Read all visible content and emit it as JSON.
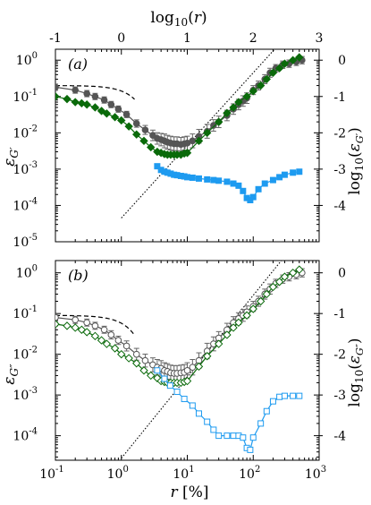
{
  "chart_data": [
    {
      "panel": "(a)",
      "type": "line",
      "x_scale": "log",
      "y_scale": "log",
      "xlim": [
        0.1,
        1000
      ],
      "ylim": [
        1e-05,
        2
      ],
      "x_ticks": [
        "10^{-1}",
        "10^{0}",
        "10^{1}",
        "10^{2}",
        "10^{3}"
      ],
      "y_ticks": [
        "10^{-5}",
        "10^{-4}",
        "10^{-3}",
        "10^{-2}",
        "10^{-1}",
        "10^{0}"
      ],
      "top_axis": {
        "label": "log10(r)",
        "ticks": [
          "-1",
          "0",
          "1",
          "2",
          "3"
        ]
      },
      "right_axis": {
        "label": "log10(ε_G')",
        "ticks": [
          "0",
          "-1",
          "-2",
          "-3",
          "-4"
        ]
      },
      "ylabel": "ε_G'",
      "series": [
        {
          "color": "#555555",
          "marker": "circle-filled",
          "x": [
            0.1,
            0.2,
            0.3,
            0.4,
            0.55,
            0.7,
            0.9,
            1.2,
            1.7,
            2.3,
            3.0,
            3.5,
            4.0,
            4.5,
            5.0,
            5.6,
            6.3,
            7.0,
            8.0,
            9.0,
            10,
            12,
            15,
            20,
            25,
            30,
            40,
            50,
            60,
            70,
            80,
            100,
            120,
            150,
            180,
            220,
            280,
            350,
            450,
            550
          ],
          "y": [
            0.18,
            0.15,
            0.12,
            0.1,
            0.08,
            0.06,
            0.045,
            0.032,
            0.018,
            0.012,
            0.0085,
            0.007,
            0.0065,
            0.006,
            0.0055,
            0.0052,
            0.005,
            0.005,
            0.0048,
            0.005,
            0.0052,
            0.006,
            0.008,
            0.011,
            0.016,
            0.02,
            0.03,
            0.045,
            0.06,
            0.075,
            0.09,
            0.15,
            0.2,
            0.3,
            0.45,
            0.6,
            0.75,
            0.8,
            0.9,
            1.0
          ],
          "err": [
            0.1,
            0.1,
            0.1,
            0.1,
            0.1,
            0.1,
            0.1,
            0.1,
            0.12,
            0.15,
            0.18,
            0.2,
            0.22,
            0.25,
            0.25,
            0.25,
            0.25,
            0.25,
            0.25,
            0.25,
            0.25,
            0.25,
            0.25,
            0.25,
            0.2,
            0.2,
            0.18,
            0.18,
            0.18,
            0.18,
            0.18,
            0.15,
            0.15,
            0.15,
            0.15,
            0.12,
            0.12,
            0.12,
            0.12,
            0.12
          ]
        },
        {
          "color": "#0a6a0a",
          "marker": "diamond-filled",
          "x": [
            0.1,
            0.15,
            0.2,
            0.25,
            0.3,
            0.4,
            0.5,
            0.6,
            0.8,
            1.0,
            1.3,
            1.7,
            2.2,
            2.8,
            3.5,
            4.0,
            4.5,
            5.0,
            5.6,
            6.3,
            7.0,
            8.0,
            9.0,
            10,
            15,
            20,
            30,
            40,
            50,
            60,
            80,
            100,
            130,
            160,
            200,
            250,
            300,
            400,
            500
          ],
          "y": [
            0.1,
            0.085,
            0.07,
            0.065,
            0.06,
            0.05,
            0.04,
            0.034,
            0.027,
            0.022,
            0.015,
            0.009,
            0.006,
            0.004,
            0.003,
            0.0028,
            0.0026,
            0.0025,
            0.0025,
            0.0025,
            0.0025,
            0.0025,
            0.0027,
            0.0028,
            0.006,
            0.01,
            0.02,
            0.035,
            0.05,
            0.07,
            0.1,
            0.14,
            0.2,
            0.3,
            0.45,
            0.6,
            0.8,
            1.0,
            1.2
          ]
        },
        {
          "color": "#1e9bf0",
          "marker": "square-filled",
          "x": [
            3.5,
            4.0,
            4.5,
            5.0,
            5.6,
            6.3,
            7.0,
            8.0,
            9.0,
            10,
            12,
            15,
            20,
            25,
            30,
            40,
            50,
            60,
            70,
            80,
            90,
            100,
            120,
            150,
            200,
            250,
            300,
            400,
            500
          ],
          "y": [
            0.0012,
            0.00095,
            0.00085,
            0.0008,
            0.00075,
            0.0007,
            0.00068,
            0.00065,
            0.00063,
            0.0006,
            0.00058,
            0.00055,
            0.00052,
            0.0005,
            0.00048,
            0.00045,
            0.0004,
            0.00035,
            0.00025,
            0.00016,
            0.00014,
            0.00017,
            0.00028,
            0.0004,
            0.0005,
            0.0006,
            0.0007,
            0.0008,
            0.00085
          ]
        }
      ],
      "reference_curves": [
        {
          "style": "dashed",
          "form": "0.2*exp(-(r/1.7)^2)"
        },
        {
          "style": "dotted",
          "form": "slope 2 line through (10, 4.5e-3)"
        }
      ]
    },
    {
      "panel": "(b)",
      "type": "line",
      "x_scale": "log",
      "y_scale": "log",
      "xlim": [
        0.1,
        1000
      ],
      "ylim": [
        2.5e-05,
        2
      ],
      "x_ticks": [
        "10^{-1}",
        "10^{0}",
        "10^{1}",
        "10^{2}",
        "10^{3}"
      ],
      "y_ticks": [
        "10^{-4}",
        "10^{-3}",
        "10^{-2}",
        "10^{-1}",
        "10^{0}"
      ],
      "right_axis": {
        "label": "log10(ε_G'')",
        "ticks": [
          "0",
          "-1",
          "-2",
          "-3",
          "-4"
        ]
      },
      "ylabel": "ε_G''",
      "xlabel": "r [%]",
      "series": [
        {
          "color": "#555555",
          "marker": "circle-open",
          "x": [
            0.1,
            0.2,
            0.3,
            0.4,
            0.55,
            0.7,
            0.9,
            1.2,
            1.7,
            2.3,
            3.0,
            3.5,
            4.0,
            4.5,
            5.0,
            5.6,
            6.3,
            7.0,
            8.0,
            9.0,
            10,
            12,
            15,
            20,
            25,
            30,
            40,
            50,
            60,
            70,
            80,
            100,
            120,
            150,
            180,
            220,
            280,
            350,
            450,
            550
          ],
          "y": [
            0.08,
            0.07,
            0.06,
            0.05,
            0.04,
            0.03,
            0.022,
            0.016,
            0.01,
            0.007,
            0.0055,
            0.0048,
            0.0045,
            0.004,
            0.0038,
            0.0035,
            0.0034,
            0.0034,
            0.0035,
            0.0036,
            0.004,
            0.0048,
            0.007,
            0.012,
            0.018,
            0.025,
            0.04,
            0.06,
            0.075,
            0.09,
            0.11,
            0.15,
            0.2,
            0.3,
            0.4,
            0.55,
            0.7,
            0.8,
            0.9,
            1.0
          ],
          "err": [
            0.1,
            0.1,
            0.1,
            0.1,
            0.1,
            0.12,
            0.12,
            0.15,
            0.18,
            0.2,
            0.22,
            0.25,
            0.25,
            0.25,
            0.25,
            0.25,
            0.25,
            0.25,
            0.25,
            0.25,
            0.25,
            0.25,
            0.25,
            0.25,
            0.22,
            0.2,
            0.2,
            0.18,
            0.18,
            0.18,
            0.18,
            0.15,
            0.15,
            0.15,
            0.15,
            0.12,
            0.12,
            0.12,
            0.12,
            0.12
          ]
        },
        {
          "color": "#0a6a0a",
          "marker": "diamond-open",
          "x": [
            0.1,
            0.15,
            0.2,
            0.25,
            0.3,
            0.4,
            0.5,
            0.6,
            0.8,
            1.0,
            1.3,
            1.7,
            2.2,
            2.8,
            3.5,
            4.0,
            4.5,
            5.0,
            5.6,
            6.3,
            7.0,
            8.0,
            9.0,
            10,
            15,
            20,
            30,
            40,
            50,
            60,
            80,
            100,
            130,
            160,
            200,
            250,
            300,
            400,
            500
          ],
          "y": [
            0.055,
            0.05,
            0.045,
            0.04,
            0.035,
            0.028,
            0.022,
            0.018,
            0.014,
            0.01,
            0.008,
            0.006,
            0.004,
            0.003,
            0.0026,
            0.0022,
            0.0021,
            0.002,
            0.002,
            0.002,
            0.002,
            0.002,
            0.0021,
            0.0022,
            0.005,
            0.009,
            0.018,
            0.03,
            0.045,
            0.06,
            0.09,
            0.13,
            0.2,
            0.3,
            0.45,
            0.6,
            0.8,
            1.0,
            1.2
          ]
        },
        {
          "color": "#1e9bf0",
          "marker": "square-open",
          "x": [
            3.5,
            4.5,
            5.5,
            7.0,
            9.0,
            12,
            15,
            20,
            25,
            30,
            40,
            50,
            60,
            70,
            80,
            90,
            100,
            130,
            160,
            200,
            250,
            300,
            400,
            500
          ],
          "y": [
            0.004,
            0.0025,
            0.0017,
            0.0012,
            0.0008,
            0.00055,
            0.00035,
            0.00022,
            0.00014,
            0.0001,
            0.0001,
            0.0001,
            0.0001,
            9e-05,
            5e-05,
            4.5e-05,
            9e-05,
            0.0002,
            0.0004,
            0.0007,
            0.0009,
            0.00095,
            0.00095,
            0.00095
          ]
        }
      ],
      "reference_curves": [
        {
          "style": "dashed",
          "form": "0.09*exp(-(r/1.5)^2)"
        },
        {
          "style": "dotted",
          "form": "slope 2 line through (10, 2.8e-3)"
        }
      ]
    }
  ]
}
